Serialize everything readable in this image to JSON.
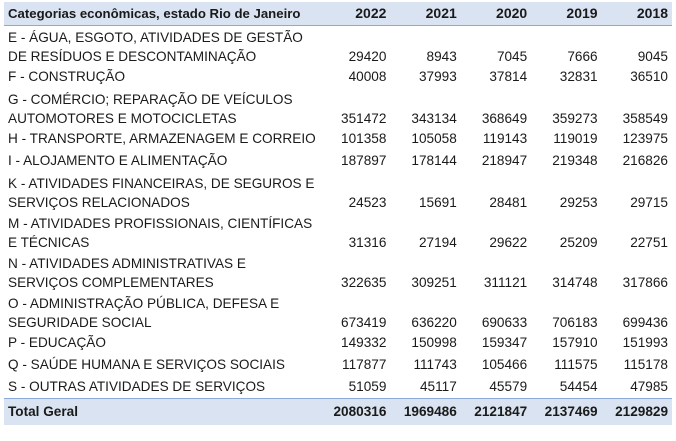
{
  "table": {
    "header": {
      "label": "Categorias econômicas, estado Rio de Janeiro",
      "years": [
        "2022",
        "2021",
        "2020",
        "2019",
        "2018"
      ]
    },
    "rows": [
      {
        "label": "E - ÁGUA, ESGOTO, ATIVIDADES DE GESTÃO DE RESÍDUOS E DESCONTAMINAÇÃO",
        "values": [
          "29420",
          "8943",
          "7045",
          "7666",
          "9045"
        ]
      },
      {
        "label": "F - CONSTRUÇÃO",
        "values": [
          "40008",
          "37993",
          "37814",
          "32831",
          "36510"
        ]
      },
      {
        "label": "G - COMÉRCIO; REPARAÇÃO DE VEÍCULOS AUTOMOTORES E MOTOCICLETAS",
        "values": [
          "351472",
          "343134",
          "368649",
          "359273",
          "358549"
        ]
      },
      {
        "label": "H - TRANSPORTE, ARMAZENAGEM E CORREIO",
        "values": [
          "101358",
          "105058",
          "119143",
          "119019",
          "123975"
        ]
      },
      {
        "label": "I - ALOJAMENTO E ALIMENTAÇÃO",
        "values": [
          "187897",
          "178144",
          "218947",
          "219348",
          "216826"
        ]
      },
      {
        "label": "K - ATIVIDADES FINANCEIRAS, DE SEGUROS E SERVIÇOS RELACIONADOS",
        "values": [
          "24523",
          "15691",
          "28481",
          "29253",
          "29715"
        ]
      },
      {
        "label": "M - ATIVIDADES PROFISSIONAIS, CIENTÍFICAS E TÉCNICAS",
        "values": [
          "31316",
          "27194",
          "29622",
          "25209",
          "22751"
        ]
      },
      {
        "label": "N - ATIVIDADES ADMINISTRATIVAS E SERVIÇOS COMPLEMENTARES",
        "values": [
          "322635",
          "309251",
          "311121",
          "314748",
          "317866"
        ]
      },
      {
        "label": "O - ADMINISTRAÇÃO PÚBLICA, DEFESA E SEGURIDADE SOCIAL",
        "values": [
          "673419",
          "636220",
          "690633",
          "706183",
          "699436"
        ]
      },
      {
        "label": "P - EDUCAÇÃO",
        "values": [
          "149332",
          "150998",
          "159347",
          "157910",
          "151993"
        ]
      },
      {
        "label": "Q - SAÚDE HUMANA E SERVIÇOS SOCIAIS",
        "values": [
          "117877",
          "111743",
          "105466",
          "111575",
          "115178"
        ]
      },
      {
        "label": "S - OUTRAS ATIVIDADES DE SERVIÇOS",
        "values": [
          "51059",
          "45117",
          "45579",
          "54454",
          "47985"
        ]
      }
    ],
    "total": {
      "label": "Total Geral",
      "values": [
        "2080316",
        "1969486",
        "2121847",
        "2137469",
        "2129829"
      ]
    }
  }
}
